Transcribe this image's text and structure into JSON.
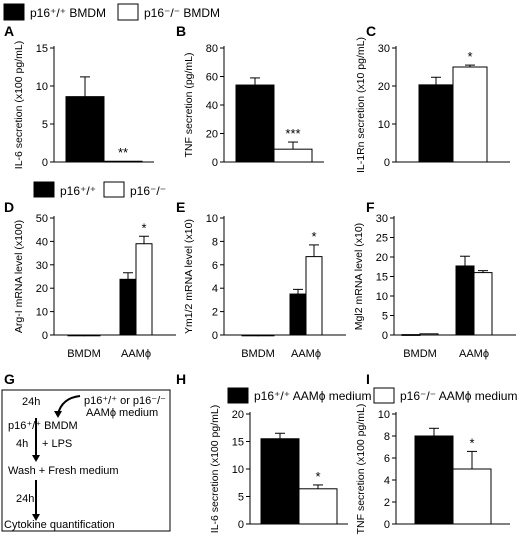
{
  "legends": {
    "top": [
      {
        "label": "p16⁺/⁺ BMDM",
        "color": "#000000"
      },
      {
        "label": "p16⁻/⁻ BMDM",
        "color": "#ffffff"
      }
    ],
    "middle": [
      {
        "label": "p16⁺/⁺",
        "color": "#000000"
      },
      {
        "label": "p16⁻/⁻",
        "color": "#ffffff"
      }
    ],
    "bottom": [
      {
        "label": "p16⁺/⁺ AAMϕ medium",
        "color": "#000000"
      },
      {
        "label": "p16⁻/⁻ AAMϕ medium",
        "color": "#ffffff"
      }
    ]
  },
  "flowchart": {
    "panel_label": "G",
    "t1": "24h",
    "feed": "p16⁺/⁺ or p16⁻/⁻",
    "feed2": "AAMϕ medium",
    "start": "p16⁺/⁺ BMDM",
    "t2": "4h",
    "lps": "+ LPS",
    "wash": "Wash +  Fresh medium",
    "t3": "24h",
    "end": "Cytokine quantification"
  },
  "chart_data": [
    {
      "panel": "A",
      "type": "bar",
      "ylabel": "IL-6 secretion (x100 pg/mL)",
      "ylim": [
        0,
        15
      ],
      "yticks": [
        0,
        5,
        10,
        15
      ],
      "categories": [
        ""
      ],
      "series": [
        {
          "values": [
            8.6
          ],
          "errors": [
            2.6
          ]
        },
        {
          "values": [
            0.1
          ],
          "errors": [
            0
          ]
        }
      ],
      "annotations": [
        {
          "group": 0,
          "text": "**"
        }
      ]
    },
    {
      "panel": "B",
      "type": "bar",
      "ylabel": "TNF secretion (pg/mL)",
      "ylim": [
        0,
        80
      ],
      "yticks": [
        0,
        20,
        40,
        60,
        80
      ],
      "categories": [
        ""
      ],
      "series": [
        {
          "values": [
            54
          ],
          "errors": [
            5
          ]
        },
        {
          "values": [
            9
          ],
          "errors": [
            5
          ]
        }
      ],
      "annotations": [
        {
          "group": 0,
          "text": "***"
        }
      ]
    },
    {
      "panel": "C",
      "type": "bar",
      "ylabel": "IL-1Rn secretion (x10 pg/mL)",
      "ylim": [
        0,
        30
      ],
      "yticks": [
        0,
        10,
        20,
        30
      ],
      "categories": [
        ""
      ],
      "series": [
        {
          "values": [
            20.3
          ],
          "errors": [
            2
          ]
        },
        {
          "values": [
            25
          ],
          "errors": [
            0.5
          ]
        }
      ],
      "annotations": [
        {
          "group": 0,
          "text": "*"
        }
      ]
    },
    {
      "panel": "D",
      "type": "bar",
      "ylabel": "Arg-I mRNA level (x100)",
      "ylim": [
        0,
        50
      ],
      "yticks": [
        0,
        10,
        20,
        30,
        40,
        50
      ],
      "categories": [
        "BMDM",
        "AAMϕ"
      ],
      "series": [
        {
          "values": [
            0,
            23.8
          ],
          "errors": [
            0,
            2.8
          ]
        },
        {
          "values": [
            0,
            39
          ],
          "errors": [
            0,
            3.2
          ]
        }
      ],
      "annotations": [
        {
          "group": 1,
          "text": "*"
        }
      ]
    },
    {
      "panel": "E",
      "type": "bar",
      "ylabel": "Ym1/2 mRNA level (x10)",
      "ylim": [
        0,
        10
      ],
      "yticks": [
        0,
        2,
        4,
        6,
        8,
        10
      ],
      "categories": [
        "BMDM",
        "AAMϕ"
      ],
      "series": [
        {
          "values": [
            0,
            3.5
          ],
          "errors": [
            0,
            0.4
          ]
        },
        {
          "values": [
            0,
            6.7
          ],
          "errors": [
            0,
            1
          ]
        }
      ],
      "annotations": [
        {
          "group": 1,
          "text": "*"
        }
      ]
    },
    {
      "panel": "F",
      "type": "bar",
      "ylabel": "Mgl2 mRNA level (x10)",
      "ylim": [
        0,
        30
      ],
      "yticks": [
        0,
        5,
        10,
        15,
        20,
        25,
        30
      ],
      "categories": [
        "BMDM",
        "AAMϕ"
      ],
      "series": [
        {
          "values": [
            0.1,
            17.7
          ],
          "errors": [
            0,
            2.5
          ]
        },
        {
          "values": [
            0.3,
            16
          ],
          "errors": [
            0,
            0.5
          ]
        }
      ],
      "annotations": []
    },
    {
      "panel": "H",
      "type": "bar",
      "ylabel": "IL-6 secretion (x100 pg/mL)",
      "ylim": [
        0,
        20
      ],
      "yticks": [
        0,
        5,
        10,
        15,
        20
      ],
      "categories": [
        ""
      ],
      "series": [
        {
          "values": [
            15.5
          ],
          "errors": [
            1
          ]
        },
        {
          "values": [
            6.4
          ],
          "errors": [
            0.7
          ]
        }
      ],
      "annotations": [
        {
          "group": 0,
          "text": "*"
        }
      ]
    },
    {
      "panel": "I",
      "type": "bar",
      "ylabel": "TNF secretion (x100 pg/mL)",
      "ylim": [
        0,
        10
      ],
      "yticks": [
        0,
        2,
        4,
        6,
        8,
        10
      ],
      "categories": [
        ""
      ],
      "series": [
        {
          "values": [
            8
          ],
          "errors": [
            0.7
          ]
        },
        {
          "values": [
            5
          ],
          "errors": [
            1.6
          ]
        }
      ],
      "annotations": [
        {
          "group": 0,
          "text": "*"
        }
      ]
    }
  ]
}
